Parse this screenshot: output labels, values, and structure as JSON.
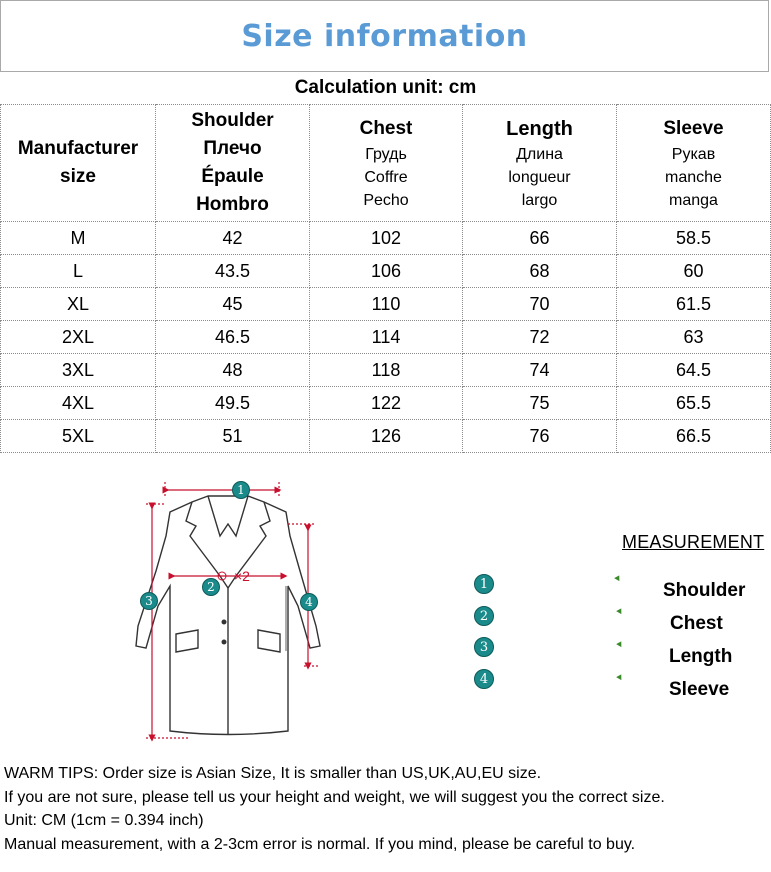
{
  "title": "Size information",
  "unit_line": "Calculation unit: cm",
  "table": {
    "headers": {
      "size": [
        "Manufacturer",
        "size"
      ],
      "shoulder": [
        "Shoulder",
        "Плечо",
        "Épaule",
        "Hombro"
      ],
      "chest": {
        "main": "Chest",
        "sub": [
          "Грудь",
          "Coffre",
          "Pecho"
        ]
      },
      "length": {
        "main": "Length",
        "sub": [
          "Длина",
          "longueur",
          "largo"
        ]
      },
      "sleeve": {
        "main": "Sleeve",
        "sub": [
          "Рукав",
          "manche",
          "manga"
        ]
      }
    },
    "rows": [
      [
        "M",
        "42",
        "102",
        "66",
        "58.5"
      ],
      [
        "L",
        "43.5",
        "106",
        "68",
        "60"
      ],
      [
        "XL",
        "45",
        "110",
        "70",
        "61.5"
      ],
      [
        "2XL",
        "46.5",
        "114",
        "72",
        "63"
      ],
      [
        "3XL",
        "48",
        "118",
        "74",
        "64.5"
      ],
      [
        "4XL",
        "49.5",
        "122",
        "75",
        "65.5"
      ],
      [
        "5XL",
        "51",
        "126",
        "76",
        "66.5"
      ]
    ]
  },
  "diagram": {
    "markers": [
      "1",
      "2",
      "3",
      "4"
    ],
    "chest_multiplier": "×2",
    "arrow_color": "#c8102e",
    "badge_color": "#1a8a8a"
  },
  "legend": {
    "title": "MEASUREMENT",
    "items": [
      {
        "num": "1",
        "label": "Shoulder"
      },
      {
        "num": "2",
        "label": "Chest"
      },
      {
        "num": "3",
        "label": "Length"
      },
      {
        "num": "4",
        "label": "Sleeve"
      }
    ]
  },
  "tips": [
    "WARM TIPS: Order size is Asian Size, It is smaller than US,UK,AU,EU size.",
    "If you are not sure, please tell us your height and weight, we will suggest you the correct size.",
    "Unit: CM (1cm = 0.394 inch)",
    "Manual measurement, with a 2-3cm error is normal. If you mind, please be careful to buy."
  ]
}
